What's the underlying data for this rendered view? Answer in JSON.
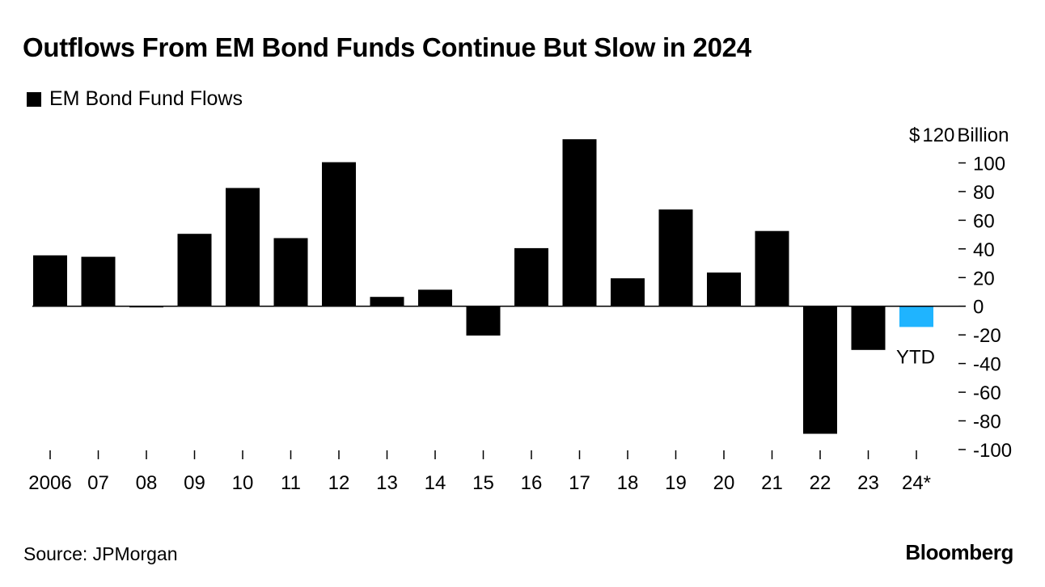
{
  "chart_data": {
    "type": "bar",
    "title": "Outflows From EM Bond Funds Continue But Slow in 2024",
    "legend": [
      {
        "label": "EM Bond Fund Flows",
        "color": "#000000"
      }
    ],
    "categories": [
      "2006",
      "07",
      "08",
      "09",
      "10",
      "11",
      "12",
      "13",
      "14",
      "15",
      "16",
      "17",
      "18",
      "19",
      "20",
      "21",
      "22",
      "23",
      "24*"
    ],
    "values": [
      35.5,
      34.5,
      -0.6,
      50.5,
      82.5,
      47.5,
      100.5,
      6.5,
      11.5,
      -20.5,
      40.5,
      116.5,
      19.5,
      67.5,
      23.5,
      52.5,
      -89.0,
      -30.5,
      -14.5
    ],
    "bar_colors": [
      "#000000",
      "#000000",
      "#000000",
      "#000000",
      "#000000",
      "#000000",
      "#000000",
      "#000000",
      "#000000",
      "#000000",
      "#000000",
      "#000000",
      "#000000",
      "#000000",
      "#000000",
      "#000000",
      "#000000",
      "#000000",
      "#1fb4ff"
    ],
    "ylim": [
      -100,
      120
    ],
    "yticks": [
      -100,
      -80,
      -60,
      -40,
      -20,
      0,
      20,
      40,
      60,
      80,
      100,
      120
    ],
    "ytick_labels": [
      "-100",
      "-80",
      "-60",
      "-40",
      "-20",
      "0",
      "20",
      "40",
      "60",
      "80",
      "100",
      "120"
    ],
    "y_top_prefix": "$",
    "y_unit_label": "Billion",
    "annotations": [
      {
        "category": "24*",
        "text": "YTD"
      }
    ],
    "axis_side": "right",
    "grid": false
  },
  "footer": {
    "source": "Source: JPMorgan",
    "brand": "Bloomberg"
  }
}
